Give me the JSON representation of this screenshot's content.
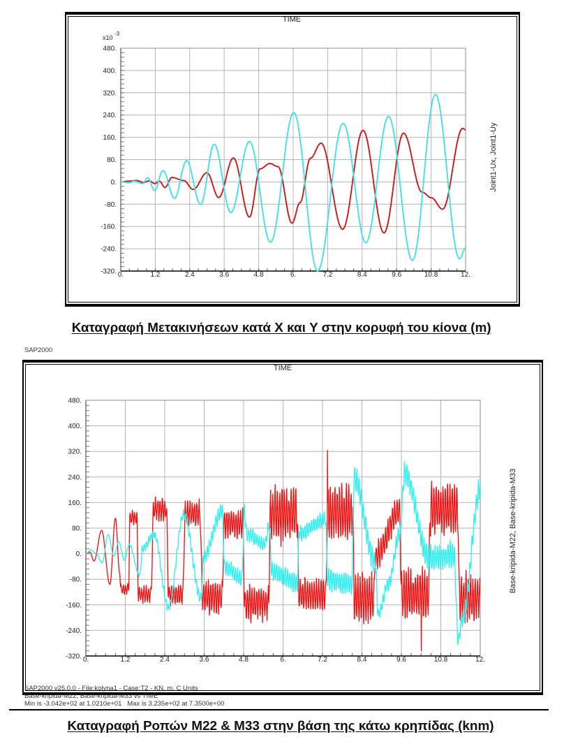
{
  "sap_label": "SAP2000",
  "captions": {
    "top": "Καταγραφή Μετακινήσεων κατά X και Y στην κορυφή του κίονα (m)",
    "bottom": "Καταγραφή Ροπών M22 & M33 στην βάση της κάτω κρηπίδας (knm)"
  },
  "footer": {
    "line1": "SAP2000 v25.0.0 - File:kolyna1 - Case:T2 - KN, m, C Units",
    "line2": "Base-kripida-M22, Base-kripida-M33 vs TIME",
    "line3": "Min is -3.042e+02 at 1.0210e+01   Max is 3.235e+02 at 7.3500e+00"
  },
  "chart_data": [
    {
      "type": "line",
      "xlabel": "TIME",
      "ylabel": "Joint1-Ux, Joint1-Uy",
      "y_scale": {
        "base": "x10",
        "exponent": "-3"
      },
      "xlim": [
        0,
        12
      ],
      "ylim": [
        -320,
        480
      ],
      "grid": true,
      "x_minor_step": 0.3,
      "y_minor_step": 16,
      "x_ticks": [
        {
          "value": 0,
          "label": "0."
        },
        {
          "value": 1.2,
          "label": "1.2"
        },
        {
          "value": 2.4,
          "label": "2.4"
        },
        {
          "value": 3.6,
          "label": "3.6"
        },
        {
          "value": 4.8,
          "label": "4.8"
        },
        {
          "value": 6,
          "label": "6."
        },
        {
          "value": 7.2,
          "label": "7.2"
        },
        {
          "value": 8.4,
          "label": "8.4"
        },
        {
          "value": 9.6,
          "label": "9.6"
        },
        {
          "value": 10.8,
          "label": "10.8"
        },
        {
          "value": 12,
          "label": "12."
        }
      ],
      "y_ticks": [
        {
          "value": 480,
          "label": "480."
        },
        {
          "value": 400,
          "label": "400."
        },
        {
          "value": 320,
          "label": "320."
        },
        {
          "value": 240,
          "label": "240."
        },
        {
          "value": 160,
          "label": "160."
        },
        {
          "value": 80,
          "label": "80."
        },
        {
          "value": 0,
          "label": "0."
        },
        {
          "value": -80,
          "label": "-80."
        },
        {
          "value": -160,
          "label": "-160."
        },
        {
          "value": -240,
          "label": "-240."
        },
        {
          "value": -320,
          "label": "-320."
        }
      ],
      "series": [
        {
          "name": "Joint1-Ux",
          "color": "#d01616",
          "points": [
            [
              0,
              0
            ],
            [
              0.3,
              3
            ],
            [
              0.55,
              5
            ],
            [
              0.8,
              -2
            ],
            [
              1.0,
              4
            ],
            [
              1.18,
              -6
            ],
            [
              1.35,
              2
            ],
            [
              1.54,
              -20
            ],
            [
              1.78,
              16
            ],
            [
              2.19,
              5
            ],
            [
              2.52,
              -27
            ],
            [
              3.0,
              33
            ],
            [
              3.41,
              -56
            ],
            [
              3.92,
              86
            ],
            [
              4.48,
              -126
            ],
            [
              4.85,
              47
            ],
            [
              5.19,
              66
            ],
            [
              5.47,
              55
            ],
            [
              5.96,
              -148
            ],
            [
              6.24,
              -74
            ],
            [
              6.6,
              85
            ],
            [
              6.97,
              139
            ],
            [
              7.72,
              -170
            ],
            [
              8.43,
              185
            ],
            [
              9.16,
              -183
            ],
            [
              9.84,
              175
            ],
            [
              10.49,
              -37
            ],
            [
              10.81,
              -57
            ],
            [
              11.2,
              -98
            ],
            [
              11.9,
              192
            ],
            [
              12,
              187
            ]
          ]
        },
        {
          "name": "Joint1-Uy",
          "color": "#3fe2ea",
          "points": [
            [
              0,
              0
            ],
            [
              0.3,
              -3
            ],
            [
              0.45,
              3
            ],
            [
              0.76,
              -6
            ],
            [
              0.94,
              15
            ],
            [
              1.18,
              -31
            ],
            [
              1.47,
              41
            ],
            [
              1.87,
              -59
            ],
            [
              2.29,
              76
            ],
            [
              2.78,
              -81
            ],
            [
              3.25,
              135
            ],
            [
              3.83,
              -110
            ],
            [
              4.48,
              145
            ],
            [
              5.21,
              -216
            ],
            [
              6.02,
              249
            ],
            [
              6.85,
              -320
            ],
            [
              7.74,
              210
            ],
            [
              8.53,
              -218
            ],
            [
              9.32,
              235
            ],
            [
              10.15,
              -282
            ],
            [
              10.95,
              314
            ],
            [
              11.79,
              -276
            ],
            [
              12,
              -237
            ]
          ]
        }
      ]
    },
    {
      "type": "line",
      "xlabel": "TIME",
      "ylabel": "Base-kripida-M22, Base-kripida-M33",
      "xlim": [
        0,
        12
      ],
      "ylim": [
        -320,
        480
      ],
      "grid": true,
      "x_minor_step": 0.3,
      "y_minor_step": 16,
      "x_ticks": [
        {
          "value": 0,
          "label": "0."
        },
        {
          "value": 1.2,
          "label": "1.2"
        },
        {
          "value": 2.4,
          "label": "2.4"
        },
        {
          "value": 3.6,
          "label": "3.6"
        },
        {
          "value": 4.8,
          "label": "4.8"
        },
        {
          "value": 6,
          "label": "6."
        },
        {
          "value": 7.2,
          "label": "7.2"
        },
        {
          "value": 8.4,
          "label": "8.4"
        },
        {
          "value": 9.6,
          "label": "9.6"
        },
        {
          "value": 10.8,
          "label": "10.8"
        },
        {
          "value": 12,
          "label": "12."
        }
      ],
      "y_ticks": [
        {
          "value": 480,
          "label": "480."
        },
        {
          "value": 400,
          "label": "400."
        },
        {
          "value": 320,
          "label": "320."
        },
        {
          "value": 240,
          "label": "240."
        },
        {
          "value": 160,
          "label": "160."
        },
        {
          "value": 80,
          "label": "80."
        },
        {
          "value": 0,
          "label": "0."
        },
        {
          "value": -80,
          "label": "-80."
        },
        {
          "value": -160,
          "label": "-160."
        },
        {
          "value": -240,
          "label": "-240."
        },
        {
          "value": -320,
          "label": "-320."
        }
      ],
      "series": [
        {
          "name": "Base-kripida-M22",
          "color": "#f21010",
          "ripple_period": 0.07,
          "points": [
            [
              0,
              0,
              0
            ],
            [
              0.12,
              5,
              0
            ],
            [
              0.25,
              -23,
              0
            ],
            [
              0.48,
              73,
              0
            ],
            [
              0.73,
              -96,
              0
            ],
            [
              0.9,
              111,
              0
            ],
            [
              1.03,
              -60,
              0
            ],
            [
              1.06,
              -111,
              18
            ],
            [
              1.3,
              -111,
              18
            ],
            [
              1.34,
              112,
              25
            ],
            [
              1.55,
              112,
              25
            ],
            [
              1.6,
              -128,
              28
            ],
            [
              1.98,
              -128,
              28
            ],
            [
              2.06,
              140,
              38
            ],
            [
              2.45,
              140,
              38
            ],
            [
              2.52,
              -128,
              38
            ],
            [
              2.95,
              -128,
              38
            ],
            [
              3.02,
              125,
              42
            ],
            [
              3.47,
              125,
              42
            ],
            [
              3.55,
              -135,
              55
            ],
            [
              4.15,
              -135,
              55
            ],
            [
              4.2,
              95,
              48
            ],
            [
              4.78,
              95,
              48
            ],
            [
              4.83,
              -155,
              58
            ],
            [
              5.56,
              -155,
              58
            ],
            [
              5.61,
              125,
              95
            ],
            [
              6.43,
              125,
              95
            ],
            [
              6.48,
              -128,
              55
            ],
            [
              7.3,
              -128,
              55
            ],
            [
              7.35,
              125,
              95
            ],
            [
              8.12,
              125,
              95
            ],
            [
              8.17,
              -140,
              80
            ],
            [
              8.77,
              -140,
              80
            ],
            [
              8.8,
              -10,
              45
            ],
            [
              9.55,
              135,
              55
            ],
            [
              9.6,
              -128,
              85
            ],
            [
              10.43,
              -128,
              85
            ],
            [
              10.48,
              140,
              90
            ],
            [
              11.32,
              140,
              90
            ],
            [
              11.36,
              -140,
              80
            ],
            [
              12,
              -140,
              80
            ]
          ],
          "spikes": [
            [
              7.35,
              323.5
            ],
            [
              10.21,
              -304.2
            ]
          ]
        },
        {
          "name": "Base-kripida-M33",
          "color": "#2ff0f0",
          "ripple_period": 0.066,
          "points": [
            [
              0,
              0,
              0
            ],
            [
              0.15,
              12,
              0
            ],
            [
              0.3,
              2,
              0
            ],
            [
              0.5,
              -28,
              0
            ],
            [
              0.68,
              60,
              0
            ],
            [
              0.85,
              -8,
              0
            ],
            [
              1.0,
              38,
              0
            ],
            [
              1.17,
              -20,
              3
            ],
            [
              1.32,
              28,
              5
            ],
            [
              1.64,
              -68,
              8
            ],
            [
              1.72,
              15,
              12
            ],
            [
              2.08,
              60,
              14
            ],
            [
              2.51,
              -168,
              15
            ],
            [
              2.98,
              122,
              16
            ],
            [
              3.51,
              -140,
              20
            ],
            [
              3.58,
              -10,
              20
            ],
            [
              4.15,
              135,
              28
            ],
            [
              4.22,
              -45,
              28
            ],
            [
              4.75,
              -75,
              28
            ],
            [
              4.82,
              135,
              25
            ],
            [
              4.9,
              60,
              25
            ],
            [
              5.45,
              30,
              22
            ],
            [
              5.58,
              85,
              22
            ],
            [
              5.66,
              -55,
              30
            ],
            [
              6.44,
              -90,
              35
            ],
            [
              6.48,
              62,
              25
            ],
            [
              7.3,
              108,
              25
            ],
            [
              7.35,
              -80,
              40
            ],
            [
              8.1,
              -95,
              40
            ],
            [
              8.16,
              240,
              45
            ],
            [
              8.8,
              -25,
              42
            ],
            [
              8.9,
              -190,
              20
            ],
            [
              9.2,
              -95,
              25
            ],
            [
              9.55,
              60,
              30
            ],
            [
              9.7,
              250,
              40
            ],
            [
              10.45,
              -15,
              45
            ],
            [
              11.2,
              -5,
              45
            ],
            [
              11.33,
              -272,
              20
            ],
            [
              11.45,
              -205,
              30
            ],
            [
              12,
              200,
              40
            ]
          ]
        }
      ]
    }
  ]
}
